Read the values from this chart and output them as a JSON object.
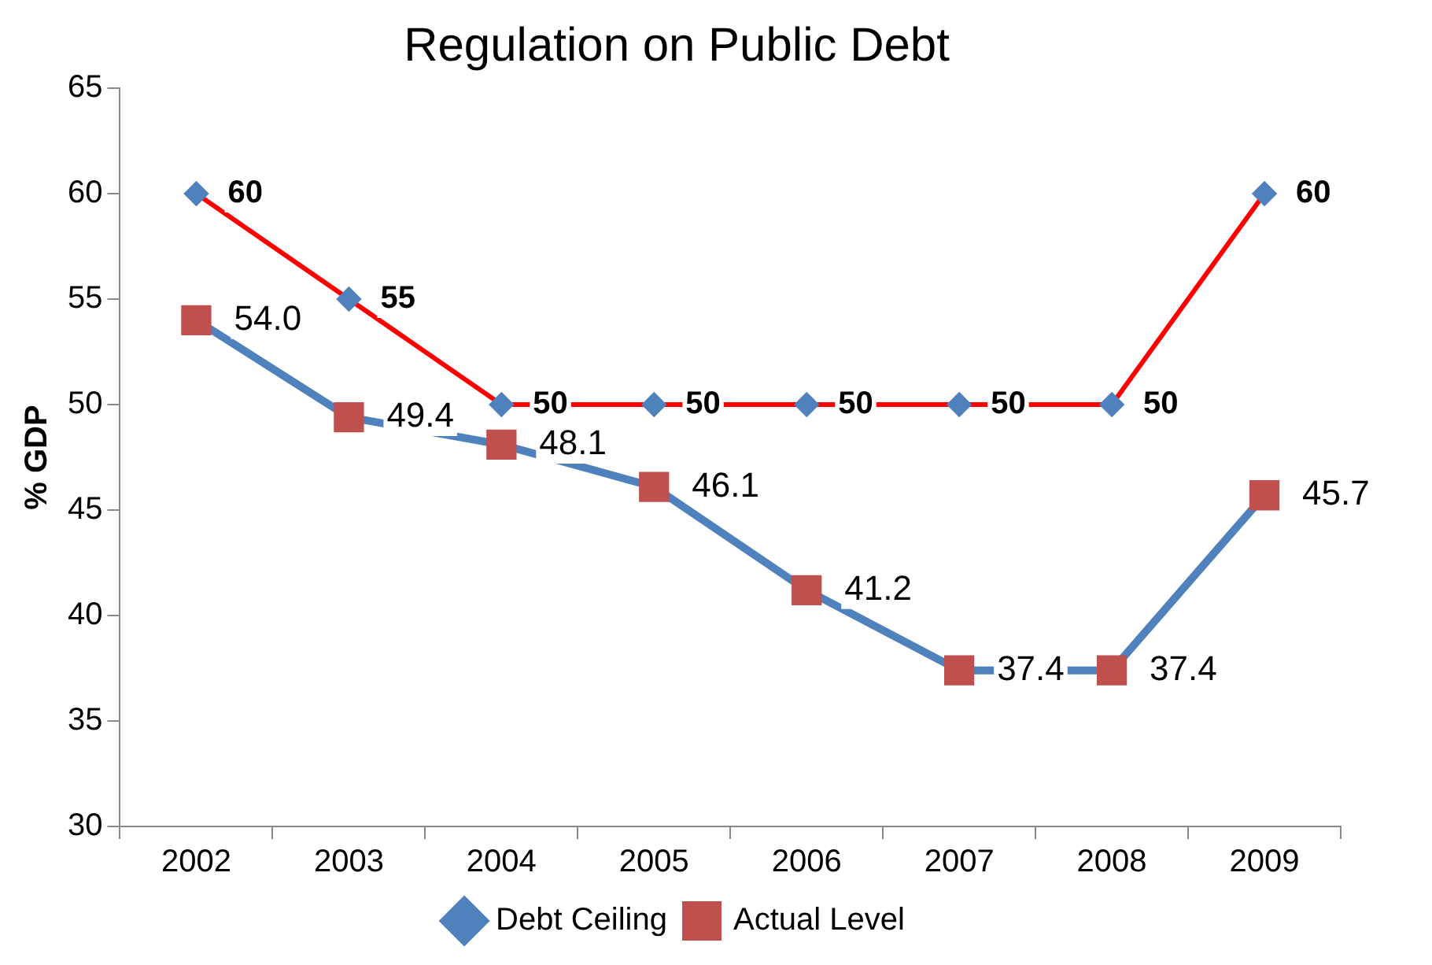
{
  "chart_data": {
    "type": "line",
    "title": "Regulation on Public Debt",
    "ylabel": "% GDP",
    "categories": [
      "2002",
      "2003",
      "2004",
      "2005",
      "2006",
      "2007",
      "2008",
      "2009"
    ],
    "series": [
      {
        "name": "Debt Ceiling",
        "color": "#ff0000",
        "marker": "diamond",
        "colors": [
          "#4f81bd",
          "#4f81bd",
          "#4f81bd",
          "#4f81bd",
          "#4f81bd",
          "#4f81bd",
          "#4f81bd",
          "#4f81bd"
        ],
        "values": [
          60,
          55,
          50,
          50,
          50,
          50,
          50,
          60
        ],
        "value_labels": [
          "60",
          "55",
          "50",
          "50",
          "50",
          "50",
          "50",
          "60"
        ]
      },
      {
        "name": "Actual Level",
        "color": "#4f81bd",
        "marker": "square",
        "colors": [
          "#c0504d",
          "#c0504d",
          "#c0504d",
          "#c0504d",
          "#c0504d",
          "#c0504d",
          "#c0504d",
          "#c0504d"
        ],
        "values": [
          54.0,
          49.4,
          48.1,
          46.1,
          41.2,
          37.4,
          37.4,
          45.7
        ],
        "value_labels": [
          "54.0",
          "49.4",
          "48.1",
          "46.1",
          "41.2",
          "37.4",
          "37.4",
          "45.7"
        ]
      }
    ],
    "ylim": [
      30,
      65
    ],
    "yticks": [
      30,
      35,
      40,
      45,
      50,
      55,
      60,
      65
    ],
    "grid": false,
    "legend": "bottom",
    "line_style": "solid"
  }
}
